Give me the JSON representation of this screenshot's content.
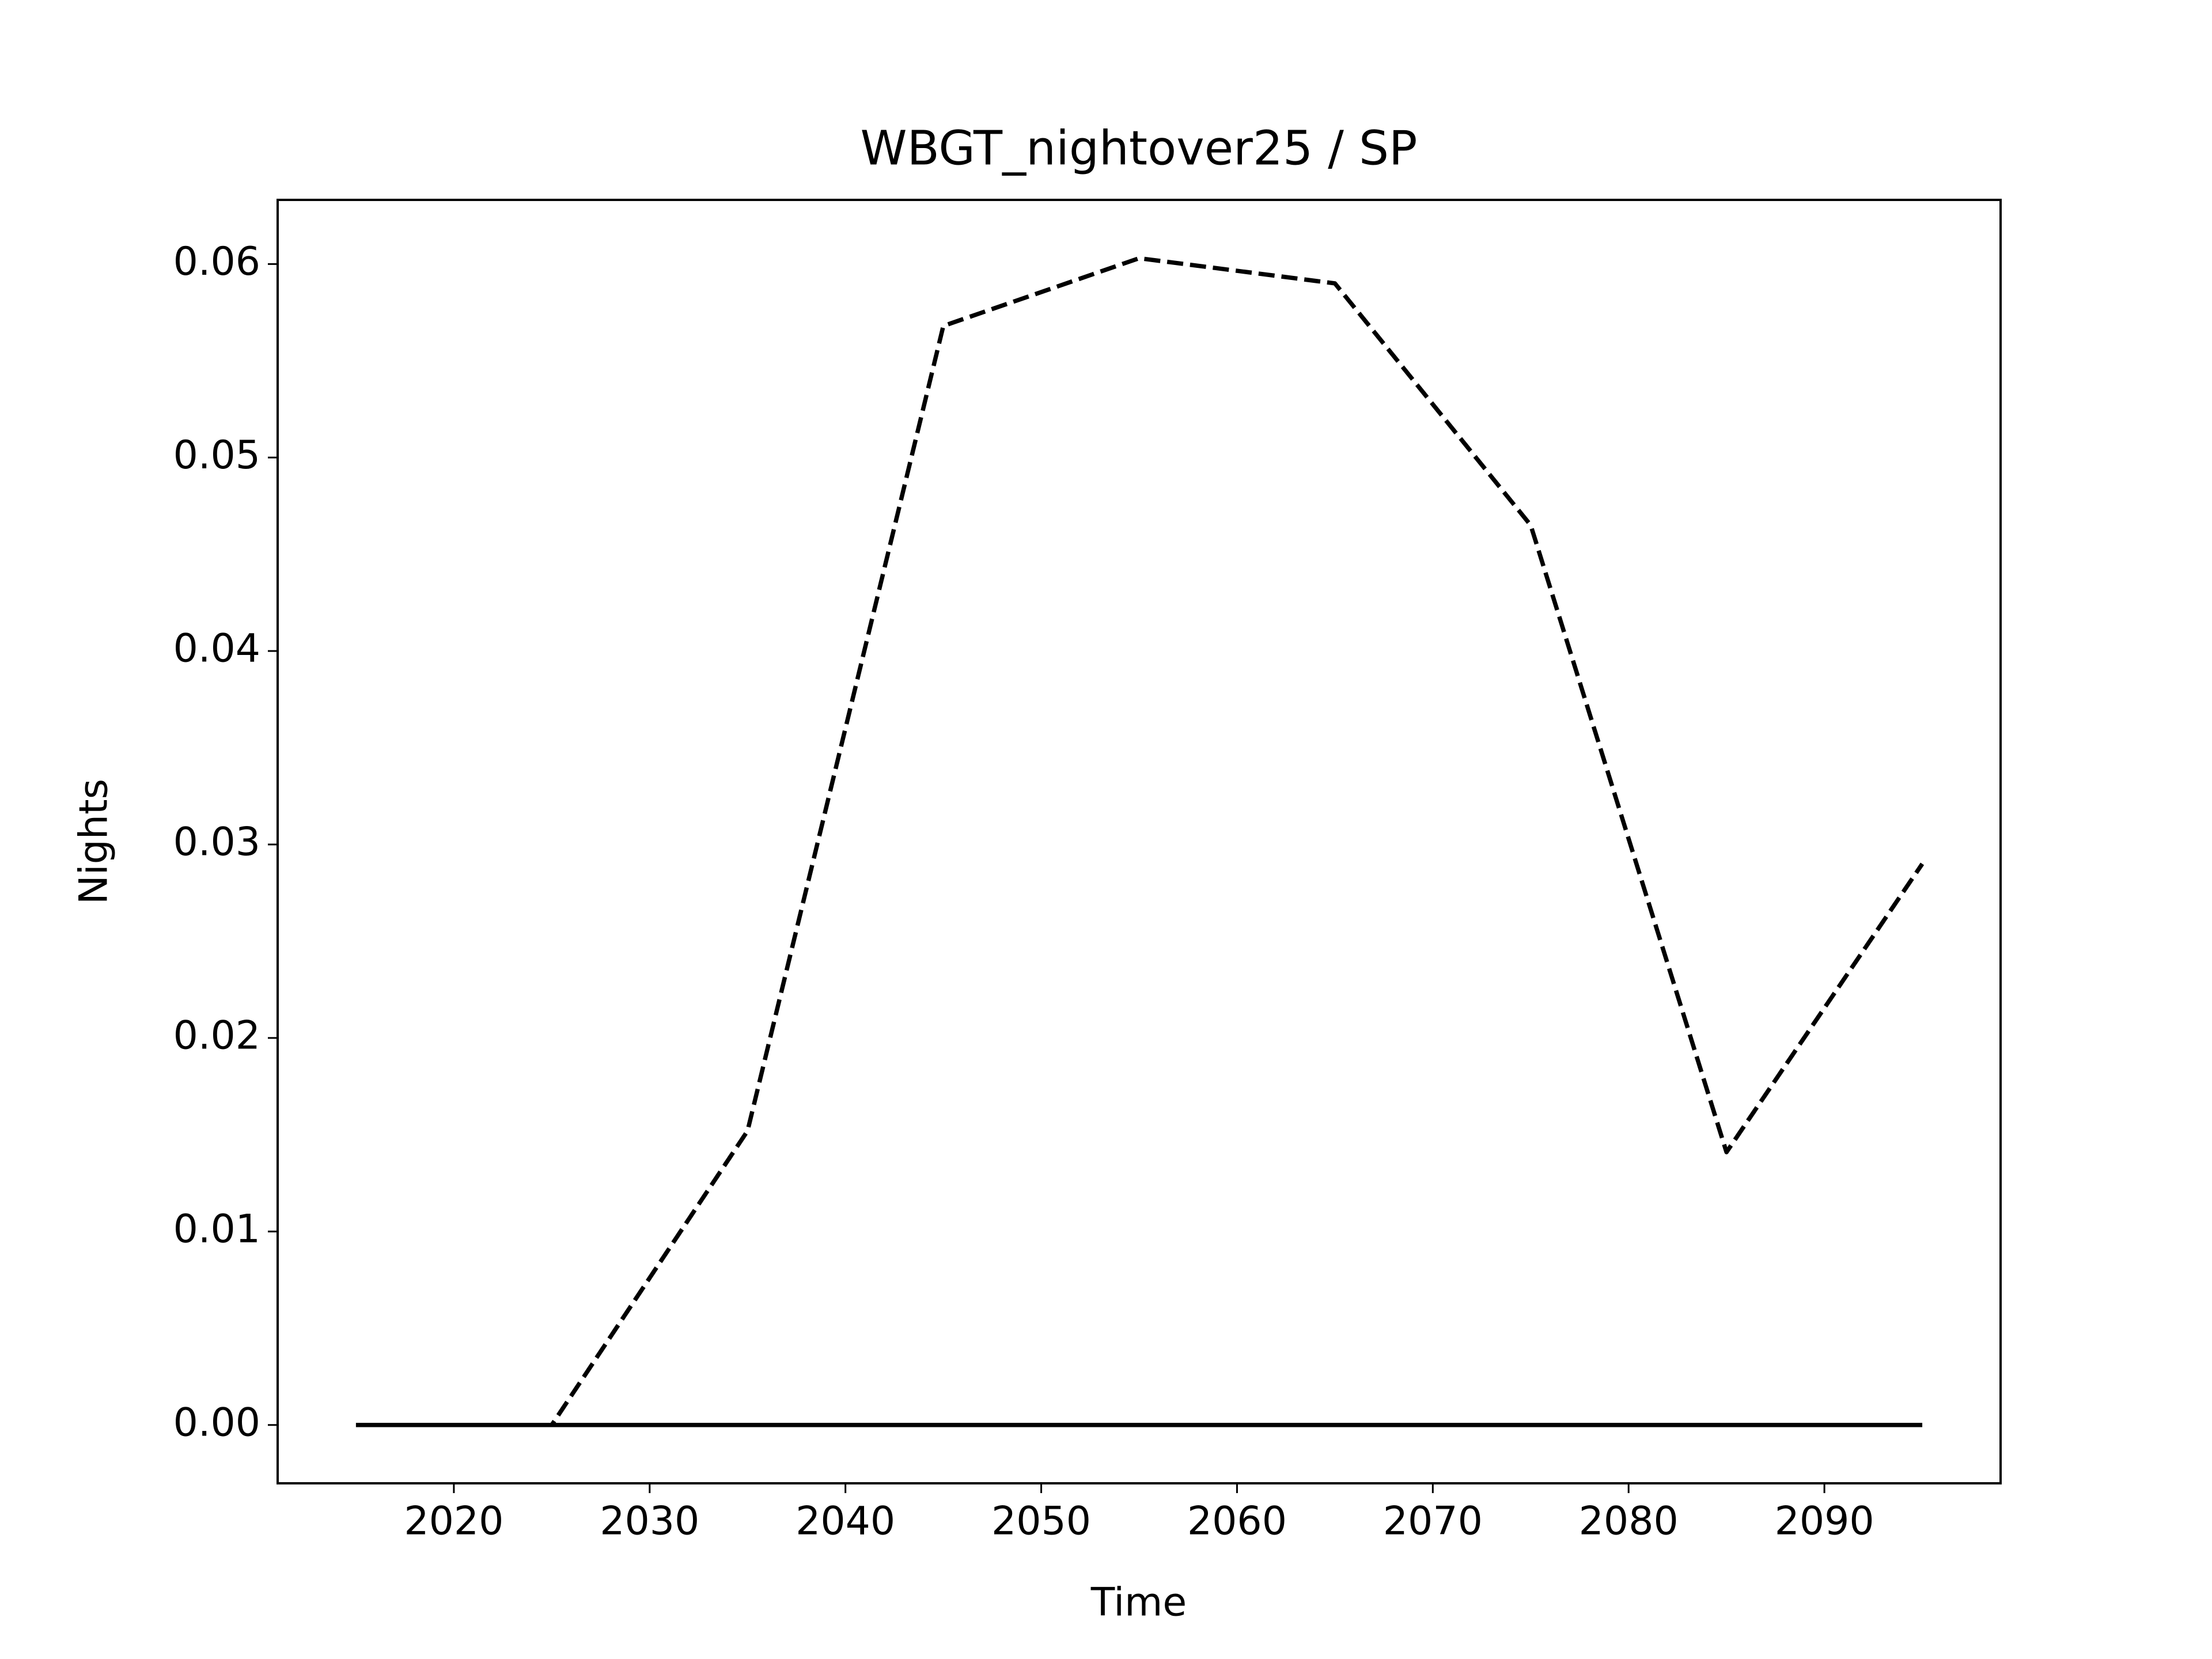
{
  "chart_data": {
    "type": "line",
    "title": "WBGT_nightover25 / SP",
    "xlabel": "Time",
    "ylabel": "Nights",
    "x": [
      2015,
      2025,
      2035,
      2045,
      2055,
      2065,
      2075,
      2085,
      2095
    ],
    "series": [
      {
        "color": "#000000",
        "linestyle": "dashed",
        "values": [
          0,
          0,
          0.0152,
          0.0568,
          0.0603,
          0.059,
          0.0465,
          0.0141,
          0.029
        ]
      },
      {
        "color": "#000000",
        "linestyle": "solid",
        "values": [
          0,
          0,
          0,
          0,
          0,
          0,
          0,
          0,
          0
        ]
      }
    ],
    "xlim": [
      2011,
      2099
    ],
    "xticks": [
      2020,
      2030,
      2040,
      2050,
      2060,
      2070,
      2080,
      2090
    ],
    "ylim": [
      -0.003015,
      0.063315
    ],
    "yticks": [
      {
        "value": 0,
        "label": "0.00"
      },
      0.01,
      0.02,
      0.03,
      0.04,
      0.05,
      0.06
    ],
    "grid": false
  }
}
